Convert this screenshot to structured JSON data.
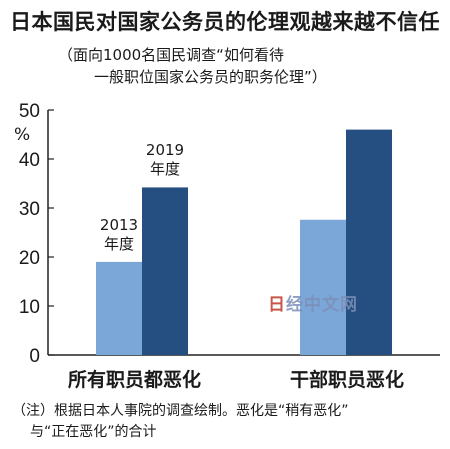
{
  "chart_data": {
    "type": "bar",
    "title": "日本国民对国家公务员的伦理观越来越不信任",
    "subtitle": [
      "（面向1000名国民调查“如何看待",
      "一般职位国家公务员的职务伦理”）"
    ],
    "ylabel": "%",
    "ylim": [
      0,
      50
    ],
    "yticks": [
      0,
      10,
      20,
      30,
      40,
      50
    ],
    "categories": [
      "所有职员都恶化",
      "干部职员恶化"
    ],
    "series": [
      {
        "name": "2013年度",
        "label_lines": [
          "2013",
          "年度"
        ],
        "color": "#7ba7d8",
        "values": [
          19,
          27.6
        ]
      },
      {
        "name": "2019年度",
        "label_lines": [
          "2019",
          "年度"
        ],
        "color": "#254f80",
        "values": [
          34.2,
          46
        ]
      }
    ],
    "legend": "inline-labels-on-bars",
    "grid": false
  },
  "note": [
    "（注）根据日本人事院的调查绘制。恶化是“稍有恶化”",
    "与“正在恶化”的合计"
  ],
  "watermark": {
    "text": "日经中文网"
  }
}
